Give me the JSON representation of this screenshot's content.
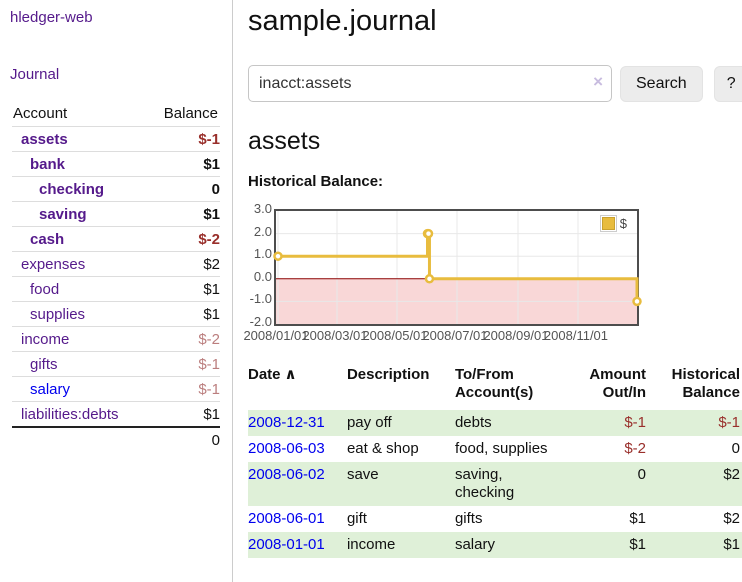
{
  "app_title": "hledger-web",
  "sidebar": {
    "journal_link": "Journal",
    "accounts_table": {
      "account_header": "Account",
      "balance_header": "Balance",
      "rows": [
        {
          "name": "assets",
          "indent": 1,
          "bold": true,
          "name_color": "purple",
          "balance": "$-1",
          "balance_tone": "neg-strong"
        },
        {
          "name": "bank",
          "indent": 2,
          "bold": true,
          "name_color": "purple",
          "balance": "$1",
          "balance_tone": "normal"
        },
        {
          "name": "checking",
          "indent": 3,
          "bold": true,
          "name_color": "purple",
          "balance": "0",
          "balance_tone": "normal"
        },
        {
          "name": "saving",
          "indent": 3,
          "bold": true,
          "name_color": "purple",
          "balance": "$1",
          "balance_tone": "normal"
        },
        {
          "name": "cash",
          "indent": 2,
          "bold": true,
          "name_color": "purple",
          "balance": "$-2",
          "balance_tone": "neg-strong"
        },
        {
          "name": "expenses",
          "indent": 1,
          "bold": false,
          "name_color": "purple",
          "balance": "$2",
          "balance_tone": "normal"
        },
        {
          "name": "food",
          "indent": 2,
          "bold": false,
          "name_color": "purple",
          "balance": "$1",
          "balance_tone": "normal"
        },
        {
          "name": "supplies",
          "indent": 2,
          "bold": false,
          "name_color": "purple",
          "balance": "$1",
          "balance_tone": "normal"
        },
        {
          "name": "income",
          "indent": 1,
          "bold": false,
          "name_color": "purple",
          "balance": "$-2",
          "balance_tone": "neg-soft"
        },
        {
          "name": "gifts",
          "indent": 2,
          "bold": false,
          "name_color": "purple",
          "balance": "$-1",
          "balance_tone": "neg-soft"
        },
        {
          "name": "salary",
          "indent": 2,
          "bold": false,
          "name_color": "blue",
          "balance": "$-1",
          "balance_tone": "neg-soft"
        },
        {
          "name": "liabilities:debts",
          "indent": 1,
          "bold": false,
          "name_color": "purple",
          "balance": "$1",
          "balance_tone": "normal"
        }
      ],
      "total": "0"
    }
  },
  "main": {
    "title": "sample.journal",
    "search": {
      "value": "inacct:assets",
      "clear_icon": "×",
      "search_button": "Search",
      "help_button": "?"
    },
    "account_heading": "assets",
    "chart_label": "Historical Balance:",
    "register_table": {
      "columns": [
        {
          "label": "Date",
          "sort_arrow": "∧"
        },
        {
          "label": "Description"
        },
        {
          "label": "To/From Account(s)"
        },
        {
          "label": "Amount Out/In"
        },
        {
          "label": "Historical Balance"
        }
      ],
      "rows": [
        {
          "date": "2008-12-31",
          "description": "pay off",
          "accounts": "debts",
          "amount": "$-1",
          "amount_negative": true,
          "balance": "$-1",
          "balance_negative": true,
          "shade": true
        },
        {
          "date": "2008-06-03",
          "description": "eat & shop",
          "accounts": "food, supplies",
          "amount": "$-2",
          "amount_negative": true,
          "balance": "0",
          "balance_negative": false,
          "shade": false
        },
        {
          "date": "2008-06-02",
          "description": "save",
          "accounts": "saving, checking",
          "amount": "0",
          "amount_negative": false,
          "balance": "$2",
          "balance_negative": false,
          "shade": true
        },
        {
          "date": "2008-06-01",
          "description": "gift",
          "accounts": "gifts",
          "amount": "$1",
          "amount_negative": false,
          "balance": "$2",
          "balance_negative": false,
          "shade": false
        },
        {
          "date": "2008-01-01",
          "description": "income",
          "accounts": "salary",
          "amount": "$1",
          "amount_negative": false,
          "balance": "$1",
          "balance_negative": false,
          "shade": true
        }
      ]
    }
  },
  "chart_data": {
    "type": "line",
    "title": "Historical Balance:",
    "line_style": "step-after",
    "series": [
      {
        "name": "$",
        "color": "#e8bc3e",
        "points": [
          {
            "x": "2008-01-01",
            "y": 1
          },
          {
            "x": "2008-06-01",
            "y": 2
          },
          {
            "x": "2008-06-02",
            "y": 2
          },
          {
            "x": "2008-06-03",
            "y": 0
          },
          {
            "x": "2008-12-31",
            "y": -1
          }
        ]
      }
    ],
    "x_range": [
      "2008-01-01",
      "2008-12-31"
    ],
    "ylim": [
      -2.0,
      3.0
    ],
    "yticks": [
      "3.0",
      "2.0",
      "1.0",
      "0.0",
      "-1.0",
      "-2.0"
    ],
    "xticks": [
      "2008/01/01",
      "2008/03/01",
      "2008/05/01",
      "2008/07/01",
      "2008/09/01",
      "2008/11/01"
    ],
    "grid": true,
    "legend": {
      "label": "$",
      "position": "top-right"
    },
    "negative_region_fill": "#f9d7d7",
    "zero_line_color": "#8b0000",
    "grid_color": "#e8e8e8"
  }
}
